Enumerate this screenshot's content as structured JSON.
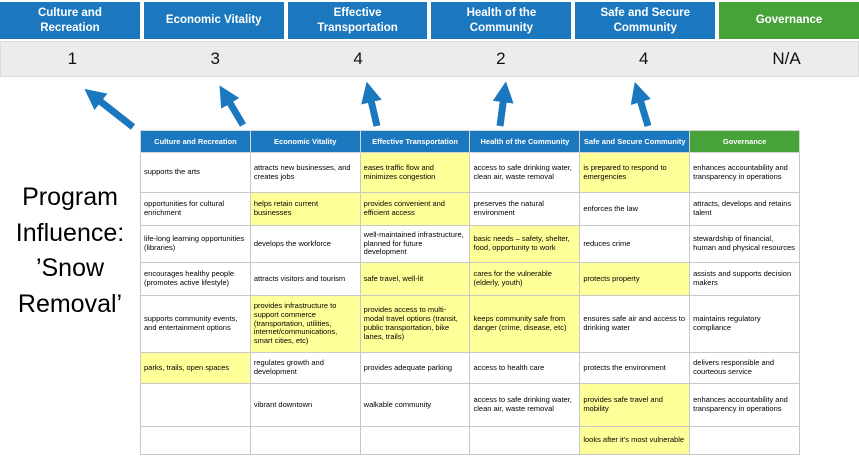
{
  "title": "Program Influence: ’Snow Removal’",
  "colors": {
    "header_blue": "#1b78be",
    "header_green": "#47a23a",
    "highlight_yellow": "#ffff99",
    "score_band_gray": "#ececec",
    "arrow_blue": "#1b78be"
  },
  "scoreboard": {
    "columns": [
      {
        "label": "Culture and Recreation",
        "score": "1"
      },
      {
        "label": "Economic Vitality",
        "score": "3"
      },
      {
        "label": "Effective Transportation",
        "score": "4"
      },
      {
        "label": "Health of the Community",
        "score": "2"
      },
      {
        "label": "Safe and Secure Community",
        "score": "4"
      },
      {
        "label": "Governance",
        "score": "N/A"
      }
    ]
  },
  "matrix": {
    "headers": [
      "Culture and Recreation",
      "Economic Vitality",
      "Effective Transportation",
      "Health of the Community",
      "Safe and Secure Community",
      "Governance"
    ],
    "rows": [
      [
        {
          "text": "supports the arts",
          "highlight": false
        },
        {
          "text": "attracts new businesses, and creates jobs",
          "highlight": false
        },
        {
          "text": "eases traffic flow and minimizes congestion",
          "highlight": true
        },
        {
          "text": "access to safe drinking water, clean air, waste removal",
          "highlight": false
        },
        {
          "text": "is prepared to respond to emergencies",
          "highlight": true
        },
        {
          "text": "enhances accountability and transparency in operations",
          "highlight": false
        }
      ],
      [
        {
          "text": "opportunities for cultural enrichment",
          "highlight": false
        },
        {
          "text": "helps retain current businesses",
          "highlight": true
        },
        {
          "text": "provides convenient and efficient access",
          "highlight": true
        },
        {
          "text": "preserves the natural environment",
          "highlight": false
        },
        {
          "text": "enforces the law",
          "highlight": false
        },
        {
          "text": "attracts, develops and retains talent",
          "highlight": false
        }
      ],
      [
        {
          "text": "life-long learning opportunities (libraries)",
          "highlight": false
        },
        {
          "text": "develops the workforce",
          "highlight": false
        },
        {
          "text": "well-maintained infrastructure, planned for future development",
          "highlight": false
        },
        {
          "text": "basic needs – safety, shelter, food, opportunity to work",
          "highlight": true
        },
        {
          "text": "reduces crime",
          "highlight": false
        },
        {
          "text": "stewardship of financial, human and physical resources",
          "highlight": false
        }
      ],
      [
        {
          "text": "encourages healthy people (promotes active lifestyle)",
          "highlight": false
        },
        {
          "text": "attracts visitors and tourism",
          "highlight": false
        },
        {
          "text": "safe travel, well-lit",
          "highlight": true
        },
        {
          "text": "cares for the vulnerable (elderly, youth)",
          "highlight": true
        },
        {
          "text": "protects property",
          "highlight": true
        },
        {
          "text": "assists and supports decision makers",
          "highlight": false
        }
      ],
      [
        {
          "text": "supports community events, and entertainment options",
          "highlight": false
        },
        {
          "text": "provides infrastructure to support commerce (transportation, utilities, internet/communications, smart cities, etc)",
          "highlight": true
        },
        {
          "text": "provides access to multi-modal travel options (transit, public transportation, bike lanes, trails)",
          "highlight": true
        },
        {
          "text": "keeps community safe from danger (crime, disease, etc)",
          "highlight": true
        },
        {
          "text": "ensures safe air and access to drinking water",
          "highlight": false
        },
        {
          "text": "maintains regulatory compliance",
          "highlight": false
        }
      ],
      [
        {
          "text": "parks, trails, open spaces",
          "highlight": true
        },
        {
          "text": "regulates growth and development",
          "highlight": false
        },
        {
          "text": "provides adequate parking",
          "highlight": false
        },
        {
          "text": "access to health care",
          "highlight": false
        },
        {
          "text": "protects the environment",
          "highlight": false
        },
        {
          "text": "delivers responsible and courteous service",
          "highlight": false
        }
      ],
      [
        {
          "text": "",
          "highlight": false
        },
        {
          "text": "vibrant downtown",
          "highlight": false
        },
        {
          "text": "walkable community",
          "highlight": false
        },
        {
          "text": "access to safe drinking water, clean air, waste removal",
          "highlight": false
        },
        {
          "text": "provides safe travel and mobility",
          "highlight": true
        },
        {
          "text": "enhances accountability and transparency in operations",
          "highlight": false
        }
      ],
      [
        {
          "text": "",
          "highlight": false
        },
        {
          "text": "",
          "highlight": false
        },
        {
          "text": "",
          "highlight": false
        },
        {
          "text": "",
          "highlight": false
        },
        {
          "text": "looks after it’s most vulnerable",
          "highlight": true
        },
        {
          "text": "",
          "highlight": false
        }
      ]
    ]
  }
}
